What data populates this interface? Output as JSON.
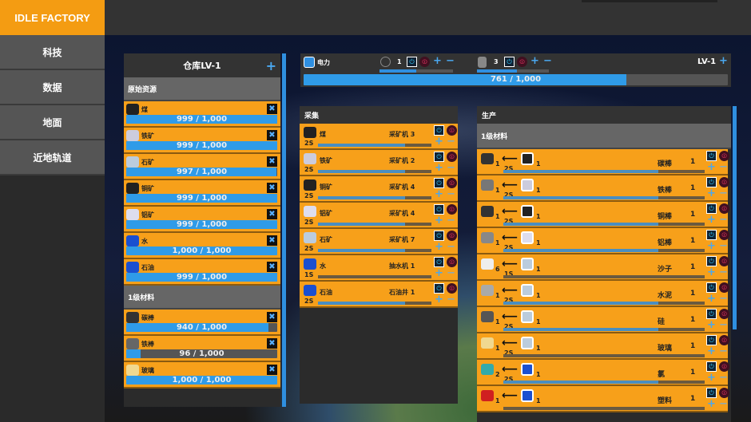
{
  "app": {
    "title": "IDLE FACTORY"
  },
  "sidebar": {
    "items": [
      {
        "label": "科技"
      },
      {
        "label": "数据"
      },
      {
        "label": "地面"
      },
      {
        "label": "近地轨道"
      }
    ]
  },
  "colors": {
    "orange": "#f7a01a",
    "blue": "#2f9be8",
    "panel": "#2b2b2b"
  },
  "warehouse": {
    "title": "仓库LV-1",
    "add": "+",
    "sections": [
      {
        "title": "原始资源",
        "items": [
          {
            "name": "煤",
            "value": "999 / 1,000",
            "fill": 0.999,
            "icon": "coal-icon",
            "color": "#222"
          },
          {
            "name": "铁矿",
            "value": "999 / 1,000",
            "fill": 0.999,
            "icon": "iron-ore-icon",
            "color": "#ccd"
          },
          {
            "name": "石矿",
            "value": "997 / 1,000",
            "fill": 0.997,
            "icon": "stone-ore-icon",
            "color": "#bcd"
          },
          {
            "name": "铜矿",
            "value": "999 / 1,000",
            "fill": 0.999,
            "icon": "copper-ore-icon",
            "color": "#222"
          },
          {
            "name": "铝矿",
            "value": "999 / 1,000",
            "fill": 0.999,
            "icon": "aluminum-ore-icon",
            "color": "#dde"
          },
          {
            "name": "水",
            "value": "1,000 / 1,000",
            "fill": 1,
            "icon": "water-barrel-icon",
            "color": "#1a4fd0"
          },
          {
            "name": "石油",
            "value": "999 / 1,000",
            "fill": 0.999,
            "icon": "oil-barrel-icon",
            "color": "#1a4fd0"
          }
        ]
      },
      {
        "title": "1级材料",
        "items": [
          {
            "name": "碳棒",
            "value": "940 / 1,000",
            "fill": 0.94,
            "icon": "carbon-rod-icon",
            "color": "#333"
          },
          {
            "name": "铁棒",
            "value": "96 / 1,000",
            "fill": 0.096,
            "icon": "iron-rod-icon",
            "color": "#666"
          },
          {
            "name": "玻璃",
            "value": "1,000 / 1,000",
            "fill": 1,
            "icon": "glass-icon",
            "color": "#f0d890"
          }
        ]
      }
    ]
  },
  "power": {
    "label": "电力",
    "gen1": {
      "count": "1",
      "fill": 0.5
    },
    "gen2": {
      "count": "3",
      "fill": 0.55
    },
    "level": "LV-1",
    "value": "761 / 1,000",
    "fill": 0.761
  },
  "collect": {
    "title": "采集",
    "items": [
      {
        "name": "煤",
        "machine": "采矿机 3",
        "time": "2S",
        "progress": 0.77,
        "color": "#222"
      },
      {
        "name": "铁矿",
        "machine": "采矿机 2",
        "time": "2S",
        "progress": 0.77,
        "color": "#ccd"
      },
      {
        "name": "铜矿",
        "machine": "采矿机 4",
        "time": "2S",
        "progress": 0.77,
        "color": "#222"
      },
      {
        "name": "铝矿",
        "machine": "采矿机 4",
        "time": "2S",
        "progress": 0.77,
        "color": "#dde"
      },
      {
        "name": "石矿",
        "machine": "采矿机 7",
        "time": "2S",
        "progress": 0.77,
        "color": "#bcd"
      },
      {
        "name": "水",
        "machine": "抽水机 1",
        "time": "1S",
        "progress": 0,
        "color": "#1a4fd0"
      },
      {
        "name": "石油",
        "machine": "石油井 1",
        "time": "2S",
        "progress": 0.77,
        "color": "#1a4fd0"
      }
    ]
  },
  "produce": {
    "title": "生产",
    "section": "1级材料",
    "items": [
      {
        "name": "碳棒",
        "out": "1",
        "in": "1",
        "time": "2S",
        "count": "1",
        "progress": 0.77,
        "oc": "#333",
        "ic": "#222"
      },
      {
        "name": "铁棒",
        "out": "1",
        "in": "1",
        "time": "2S",
        "count": "1",
        "progress": 0.77,
        "oc": "#777",
        "ic": "#ccd"
      },
      {
        "name": "铜棒",
        "out": "1",
        "in": "1",
        "time": "2S",
        "count": "1",
        "progress": 0.77,
        "oc": "#333",
        "ic": "#222"
      },
      {
        "name": "铝棒",
        "out": "1",
        "in": "1",
        "time": "2S",
        "count": "1",
        "progress": 0.77,
        "oc": "#888",
        "ic": "#dde"
      },
      {
        "name": "沙子",
        "out": "6",
        "in": "1",
        "time": "1S",
        "count": "1",
        "progress": 0,
        "oc": "#eee",
        "ic": "#bcd"
      },
      {
        "name": "水泥",
        "out": "1",
        "in": "1",
        "time": "2S",
        "count": "1",
        "progress": 0.77,
        "oc": "#aaa",
        "ic": "#bcd"
      },
      {
        "name": "硅",
        "out": "1",
        "in": "1",
        "time": "2S",
        "count": "1",
        "progress": 0.77,
        "oc": "#555",
        "ic": "#bcd"
      },
      {
        "name": "玻璃",
        "out": "1",
        "in": "1",
        "time": "2S",
        "count": "1",
        "progress": 0,
        "oc": "#f0d890",
        "ic": "#bcd"
      },
      {
        "name": "氯",
        "out": "2",
        "in": "1",
        "time": "2S",
        "count": "1",
        "progress": 0.77,
        "oc": "#3aa",
        "ic": "#1a4fd0"
      },
      {
        "name": "塑料",
        "out": "1",
        "in": "1",
        "time": "",
        "count": "1",
        "progress": 0,
        "oc": "#d02020",
        "ic": "#1a4fd0"
      }
    ]
  }
}
